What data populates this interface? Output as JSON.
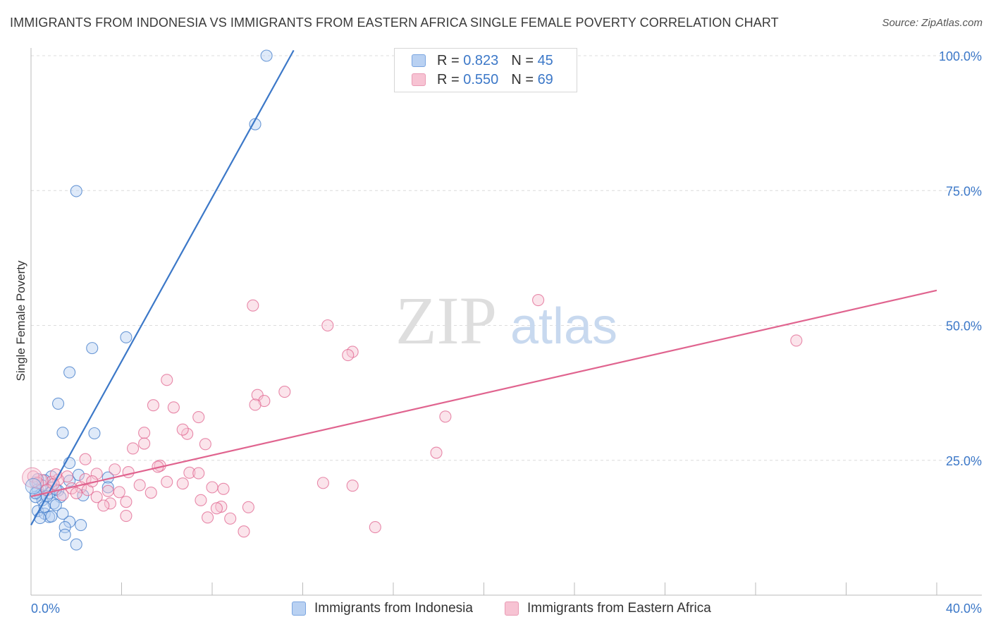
{
  "title": "IMMIGRANTS FROM INDONESIA VS IMMIGRANTS FROM EASTERN AFRICA SINGLE FEMALE POVERTY CORRELATION CHART",
  "source": "Source: ZipAtlas.com",
  "watermark": {
    "zip": "ZIP",
    "atlas": "atlas"
  },
  "colors": {
    "blue": "#3c78c8",
    "blue_fill": "#b9d1f2",
    "pink": "#e0648f",
    "pink_fill": "#f7c3d3",
    "grid": "#dcdcdc",
    "tick_label": "#3c78c8"
  },
  "legend": {
    "rows": [
      {
        "r_label": "R =",
        "r_value": "0.823",
        "n_label": "N =",
        "n_value": "45"
      },
      {
        "r_label": "R =",
        "r_value": "0.550",
        "n_label": "N =",
        "n_value": "69"
      }
    ]
  },
  "bottom_legend": [
    "Immigrants from Indonesia",
    "Immigrants from Eastern Africa"
  ],
  "chart_data": {
    "type": "scatter",
    "title": "IMMIGRANTS FROM INDONESIA VS IMMIGRANTS FROM EASTERN AFRICA SINGLE FEMALE POVERTY CORRELATION CHART",
    "xlabel": "",
    "ylabel": "Single Female Poverty",
    "xlim": [
      0,
      40
    ],
    "ylim": [
      0,
      100
    ],
    "x_tick_labels": [
      "0.0%",
      "40.0%"
    ],
    "y_tick_labels": [
      "25.0%",
      "50.0%",
      "75.0%",
      "100.0%"
    ],
    "y_ticks": [
      25,
      50,
      75,
      100
    ],
    "grid": true,
    "series": [
      {
        "name": "Immigrants from Indonesia",
        "stats": {
          "R": 0.823,
          "N": 45
        },
        "trendline": {
          "x": [
            0,
            11.6
          ],
          "y": [
            13.0,
            101.0
          ]
        },
        "points": [
          [
            10.4,
            100.0
          ],
          [
            9.9,
            87.3
          ],
          [
            2.0,
            74.9
          ],
          [
            4.2,
            47.8
          ],
          [
            2.7,
            45.8
          ],
          [
            1.7,
            41.3
          ],
          [
            1.2,
            35.5
          ],
          [
            1.4,
            30.1
          ],
          [
            2.8,
            30.0
          ],
          [
            1.7,
            24.5
          ],
          [
            2.1,
            22.3
          ],
          [
            0.9,
            22.0
          ],
          [
            1.7,
            21.2
          ],
          [
            0.6,
            21.3
          ],
          [
            3.4,
            21.8
          ],
          [
            0.2,
            20.9
          ],
          [
            0.9,
            19.9
          ],
          [
            1.2,
            19.4
          ],
          [
            0.3,
            19.6
          ],
          [
            3.4,
            20.0
          ],
          [
            0.8,
            18.9
          ],
          [
            0.4,
            18.6
          ],
          [
            1.3,
            18.2
          ],
          [
            2.3,
            18.5
          ],
          [
            0.5,
            17.6
          ],
          [
            1.0,
            17.0
          ],
          [
            0.2,
            18.2
          ],
          [
            1.1,
            16.7
          ],
          [
            0.3,
            15.6
          ],
          [
            0.6,
            15.1
          ],
          [
            0.8,
            14.5
          ],
          [
            0.4,
            14.3
          ],
          [
            1.7,
            13.6
          ],
          [
            2.2,
            13.0
          ],
          [
            1.5,
            12.6
          ],
          [
            1.5,
            11.2
          ],
          [
            2.0,
            9.4
          ],
          [
            0.9,
            14.6
          ],
          [
            1.4,
            15.1
          ],
          [
            0.7,
            18.3
          ],
          [
            0.3,
            21.5
          ],
          [
            0.5,
            20.3
          ],
          [
            1.1,
            19.6
          ],
          [
            0.2,
            18.9
          ],
          [
            0.6,
            16.4
          ]
        ]
      },
      {
        "name": "Immigrants from Eastern Africa",
        "stats": {
          "R": 0.55,
          "N": 69
        },
        "trendline": {
          "x": [
            0,
            40
          ],
          "y": [
            18.3,
            56.5
          ]
        },
        "points": [
          [
            22.4,
            54.7
          ],
          [
            33.8,
            47.2
          ],
          [
            9.8,
            53.7
          ],
          [
            13.1,
            50.0
          ],
          [
            14.2,
            45.1
          ],
          [
            14.0,
            44.5
          ],
          [
            6.0,
            39.9
          ],
          [
            11.2,
            37.7
          ],
          [
            10.0,
            37.1
          ],
          [
            10.3,
            36.0
          ],
          [
            9.9,
            35.3
          ],
          [
            5.4,
            35.2
          ],
          [
            6.3,
            34.8
          ],
          [
            18.3,
            33.1
          ],
          [
            7.4,
            33.0
          ],
          [
            5.0,
            30.1
          ],
          [
            6.9,
            29.9
          ],
          [
            6.7,
            30.7
          ],
          [
            5.0,
            28.1
          ],
          [
            7.7,
            28.0
          ],
          [
            4.5,
            27.2
          ],
          [
            17.9,
            26.4
          ],
          [
            2.4,
            25.2
          ],
          [
            5.7,
            24.0
          ],
          [
            5.6,
            23.8
          ],
          [
            3.7,
            23.3
          ],
          [
            4.3,
            22.8
          ],
          [
            7.0,
            22.7
          ],
          [
            7.4,
            22.6
          ],
          [
            2.9,
            22.5
          ],
          [
            2.4,
            21.5
          ],
          [
            1.6,
            22.0
          ],
          [
            1.2,
            21.4
          ],
          [
            0.9,
            21.0
          ],
          [
            0.5,
            21.3
          ],
          [
            6.0,
            21.0
          ],
          [
            6.7,
            20.7
          ],
          [
            12.9,
            20.8
          ],
          [
            14.2,
            20.3
          ],
          [
            4.8,
            20.4
          ],
          [
            8.0,
            20.0
          ],
          [
            8.5,
            19.7
          ],
          [
            2.2,
            20.0
          ],
          [
            1.8,
            19.8
          ],
          [
            1.0,
            20.6
          ],
          [
            2.5,
            19.5
          ],
          [
            3.4,
            19.3
          ],
          [
            5.3,
            19.0
          ],
          [
            2.0,
            18.9
          ],
          [
            2.9,
            18.2
          ],
          [
            4.2,
            17.3
          ],
          [
            3.5,
            17.0
          ],
          [
            7.5,
            17.6
          ],
          [
            8.4,
            16.4
          ],
          [
            3.2,
            16.6
          ],
          [
            8.2,
            16.1
          ],
          [
            9.6,
            16.3
          ],
          [
            4.2,
            14.7
          ],
          [
            7.8,
            14.4
          ],
          [
            8.8,
            14.2
          ],
          [
            15.2,
            12.6
          ],
          [
            9.4,
            11.8
          ],
          [
            0.1,
            22.0
          ],
          [
            0.3,
            20.8
          ],
          [
            0.7,
            19.5
          ],
          [
            1.4,
            18.6
          ],
          [
            2.7,
            21.1
          ],
          [
            3.9,
            19.1
          ],
          [
            1.1,
            22.4
          ]
        ]
      }
    ]
  }
}
